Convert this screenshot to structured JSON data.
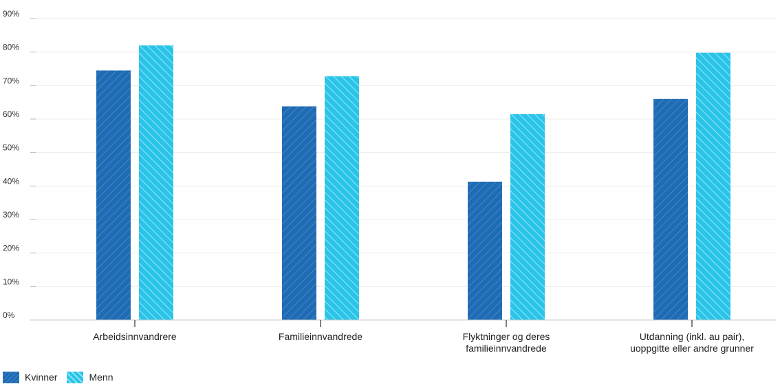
{
  "chart_data": {
    "type": "bar",
    "categories": [
      [
        "Arbeidsinnvandrere"
      ],
      [
        "Familieinnvandrede"
      ],
      [
        "Flyktninger og deres",
        "familieinnvandrede"
      ],
      [
        "Utdanning (inkl. au pair),",
        "uoppgitte eller andre grunner"
      ]
    ],
    "series": [
      {
        "name": "Kvinner",
        "values": [
          74.5,
          63.8,
          41.3,
          66.0
        ],
        "color": "#1f6cb5",
        "pattern": "hatch-forward"
      },
      {
        "name": "Menn",
        "values": [
          82.0,
          72.8,
          61.5,
          79.8
        ],
        "color": "#29c4e8",
        "pattern": "hatch-backward"
      }
    ],
    "y_ticks": [
      "0%",
      "10%",
      "20%",
      "30%",
      "40%",
      "50%",
      "60%",
      "70%",
      "80%",
      "90%"
    ],
    "ylim": [
      0,
      90
    ],
    "grid": true,
    "legend_position": "bottom-left"
  }
}
